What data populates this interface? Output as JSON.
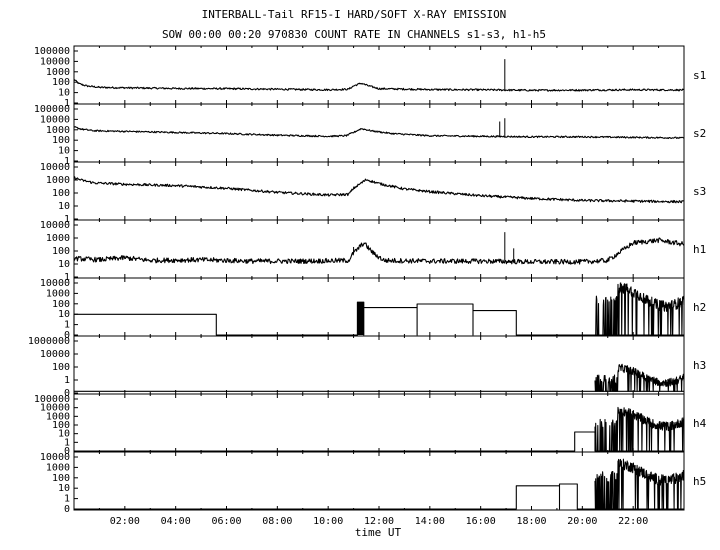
{
  "header": {
    "title": "INTERBALL-Tail RF15-I HARD/SOFT X-RAY EMISSION",
    "subtitle": "SOW 00:00 00:20 970830  COUNT RATE IN CHANNELS s1-s3, h1-h5"
  },
  "chart_data": {
    "type": "line",
    "xlabel": "time UT",
    "xlim_hours": [
      0,
      24
    ],
    "x_ticks": [
      "02:00",
      "04:00",
      "06:00",
      "08:00",
      "10:00",
      "12:00",
      "14:00",
      "16:00",
      "18:00",
      "20:00",
      "22:00"
    ],
    "y_scale": "log",
    "grid": false,
    "panels": [
      {
        "name": "s1",
        "y_ticks": [
          "100000",
          "10000",
          "1000",
          "100",
          "10",
          "1"
        ],
        "y_range_decades": [
          -0.3,
          5
        ],
        "points": [
          [
            0,
            1.95
          ],
          [
            0.2,
            1.55
          ],
          [
            0.5,
            1.35
          ],
          [
            1,
            1.22
          ],
          [
            2,
            1.18
          ],
          [
            4,
            1.12
          ],
          [
            6,
            1.1
          ],
          [
            8,
            1.05
          ],
          [
            10,
            1.0
          ],
          [
            10.8,
            1.05
          ],
          [
            11,
            1.35
          ],
          [
            11.3,
            1.6
          ],
          [
            11.6,
            1.35
          ],
          [
            12,
            1.1
          ],
          [
            14,
            1.02
          ],
          [
            16,
            1.0
          ],
          [
            18,
            0.95
          ],
          [
            20,
            0.97
          ],
          [
            22,
            1.0
          ],
          [
            24,
            0.98
          ]
        ],
        "noise": 0.08,
        "spikes": [
          [
            16.95,
            3.8
          ]
        ]
      },
      {
        "name": "s2",
        "y_ticks": [
          "100000",
          "10000",
          "1000",
          "100",
          "10",
          "1"
        ],
        "y_range_decades": [
          -0.3,
          5
        ],
        "points": [
          [
            0,
            2.9
          ],
          [
            0.3,
            2.7
          ],
          [
            0.8,
            2.55
          ],
          [
            2,
            2.5
          ],
          [
            4,
            2.4
          ],
          [
            6,
            2.3
          ],
          [
            8,
            2.15
          ],
          [
            10,
            2.05
          ],
          [
            10.7,
            2.1
          ],
          [
            11,
            2.4
          ],
          [
            11.3,
            2.75
          ],
          [
            11.7,
            2.55
          ],
          [
            12.5,
            2.3
          ],
          [
            14,
            2.1
          ],
          [
            16,
            2.05
          ],
          [
            18,
            2.0
          ],
          [
            20,
            2.0
          ],
          [
            22,
            1.95
          ],
          [
            24,
            1.9
          ]
        ],
        "noise": 0.07,
        "spikes": [
          [
            16.75,
            3.4
          ],
          [
            16.95,
            3.7
          ]
        ]
      },
      {
        "name": "s3",
        "y_ticks": [
          "10000",
          "1000",
          "100",
          "10",
          "1"
        ],
        "y_range_decades": [
          -0.3,
          4
        ],
        "points": [
          [
            0,
            2.85
          ],
          [
            0.3,
            2.65
          ],
          [
            0.8,
            2.45
          ],
          [
            2,
            2.35
          ],
          [
            4,
            2.25
          ],
          [
            6,
            2.05
          ],
          [
            8,
            1.75
          ],
          [
            10,
            1.55
          ],
          [
            10.8,
            1.6
          ],
          [
            11,
            2.05
          ],
          [
            11.5,
            2.7
          ],
          [
            12,
            2.4
          ],
          [
            13,
            2.0
          ],
          [
            14,
            1.8
          ],
          [
            16,
            1.5
          ],
          [
            18,
            1.3
          ],
          [
            20,
            1.15
          ],
          [
            22,
            1.1
          ],
          [
            24,
            1.05
          ]
        ],
        "noise": 0.09,
        "spikes": []
      },
      {
        "name": "h1",
        "y_ticks": [
          "10000",
          "1000",
          "100",
          "10",
          "1"
        ],
        "y_range_decades": [
          -0.3,
          4
        ],
        "points": [
          [
            0,
            1.15
          ],
          [
            1,
            1.05
          ],
          [
            2,
            1.2
          ],
          [
            3,
            1.0
          ],
          [
            5,
            1.05
          ],
          [
            7,
            0.95
          ],
          [
            9,
            0.95
          ],
          [
            10.8,
            1.0
          ],
          [
            11,
            1.55
          ],
          [
            11.4,
            2.3
          ],
          [
            11.8,
            1.5
          ],
          [
            12.2,
            1.0
          ],
          [
            14,
            0.95
          ],
          [
            16,
            0.95
          ],
          [
            18,
            0.9
          ],
          [
            20,
            0.9
          ],
          [
            21,
            1.0
          ],
          [
            22,
            2.3
          ],
          [
            23,
            2.5
          ],
          [
            24,
            2.2
          ]
        ],
        "noise": 0.18,
        "spikes": [
          [
            16.95,
            3.1
          ],
          [
            11.0,
            2.0
          ],
          [
            17.3,
            1.9
          ]
        ]
      },
      {
        "name": "h2",
        "y_ticks": [
          "10000",
          "1000",
          "100",
          "10",
          "1",
          "0"
        ],
        "y_range_decades": [
          -0.8,
          4
        ],
        "steps": [
          [
            0,
            5.6,
            1.0
          ],
          [
            11.15,
            11.4,
            2.0
          ],
          [
            11.4,
            13.5,
            1.55
          ],
          [
            13.5,
            15.7,
            1.85
          ],
          [
            15.7,
            17.4,
            1.3
          ]
        ],
        "bursts": [
          [
            20.5,
            24,
            1.5,
            3.2
          ]
        ],
        "floor": -0.8
      },
      {
        "name": "h3",
        "y_ticks": [
          "1000000",
          "10000",
          "100",
          "1",
          "0"
        ],
        "y_range_decades": [
          -0.5,
          6
        ],
        "steps": [],
        "bursts": [
          [
            20.5,
            24,
            0.6,
            2.4
          ]
        ],
        "floor": -0.2
      },
      {
        "name": "h4",
        "y_ticks": [
          "100000",
          "10000",
          "1000",
          "100",
          "10",
          "1",
          "0"
        ],
        "y_range_decades": [
          -0.8,
          5
        ],
        "steps": [
          [
            19.7,
            20.5,
            1.2
          ]
        ],
        "bursts": [
          [
            20.5,
            24,
            1.6,
            3.3
          ]
        ],
        "floor": -0.8
      },
      {
        "name": "h5",
        "y_ticks": [
          "10000",
          "1000",
          "100",
          "10",
          "1",
          "0"
        ],
        "y_range_decades": [
          -0.8,
          4
        ],
        "steps": [
          [
            17.4,
            19.1,
            1.2
          ],
          [
            19.1,
            19.8,
            1.35
          ]
        ],
        "bursts": [
          [
            20.5,
            24,
            1.5,
            3.0
          ]
        ],
        "floor": -0.8
      }
    ]
  }
}
